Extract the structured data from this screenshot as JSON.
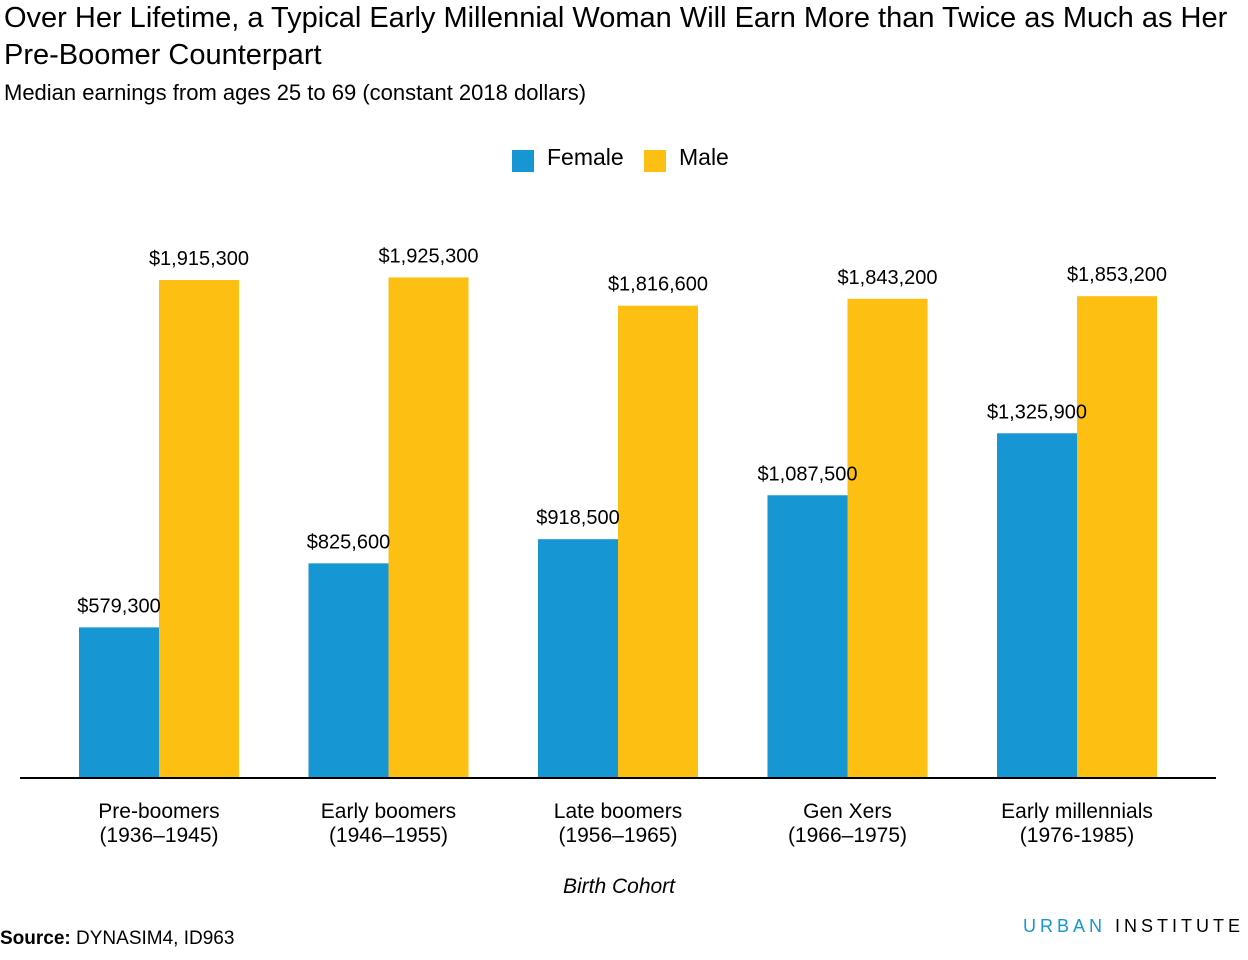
{
  "chart_data": {
    "type": "bar",
    "title": "Over Her Lifetime, a Typical Early Millennial Woman Will Earn More than Twice as Much as Her Pre-Boomer Counterpart",
    "subtitle": "Median earnings from ages 25 to 69 (constant 2018 dollars)",
    "xlabel": "Birth Cohort",
    "ylabel": "",
    "ylim": [
      0,
      2000000
    ],
    "legend_position": "top-center",
    "grid": false,
    "categories": [
      [
        "Pre-boomers",
        "(1936–1945)"
      ],
      [
        "Early boomers",
        "(1946–1955)"
      ],
      [
        "Late boomers",
        "(1956–1965)"
      ],
      [
        "Gen Xers",
        "(1966–1975)"
      ],
      [
        "Early millennials",
        "(1976-1985)"
      ]
    ],
    "series": [
      {
        "name": "Female",
        "color": "#1696d2",
        "values": [
          579300,
          825600,
          918500,
          1087500,
          1325900
        ],
        "labels": [
          "$579,300",
          "$825,600",
          "$918,500",
          "$1,087,500",
          "$1,325,900"
        ]
      },
      {
        "name": "Male",
        "color": "#fdbf11",
        "values": [
          1915300,
          1925300,
          1816600,
          1843200,
          1853200
        ],
        "labels": [
          "$1,915,300",
          "$1,925,300",
          "$1,816,600",
          "$1,843,200",
          "$1,853,200"
        ]
      }
    ]
  },
  "footer": {
    "source_label": "Source:",
    "source_text": " DYNASIM4, ID963",
    "brand_urban": "URBAN",
    "brand_institute": " INSTITUTE"
  }
}
